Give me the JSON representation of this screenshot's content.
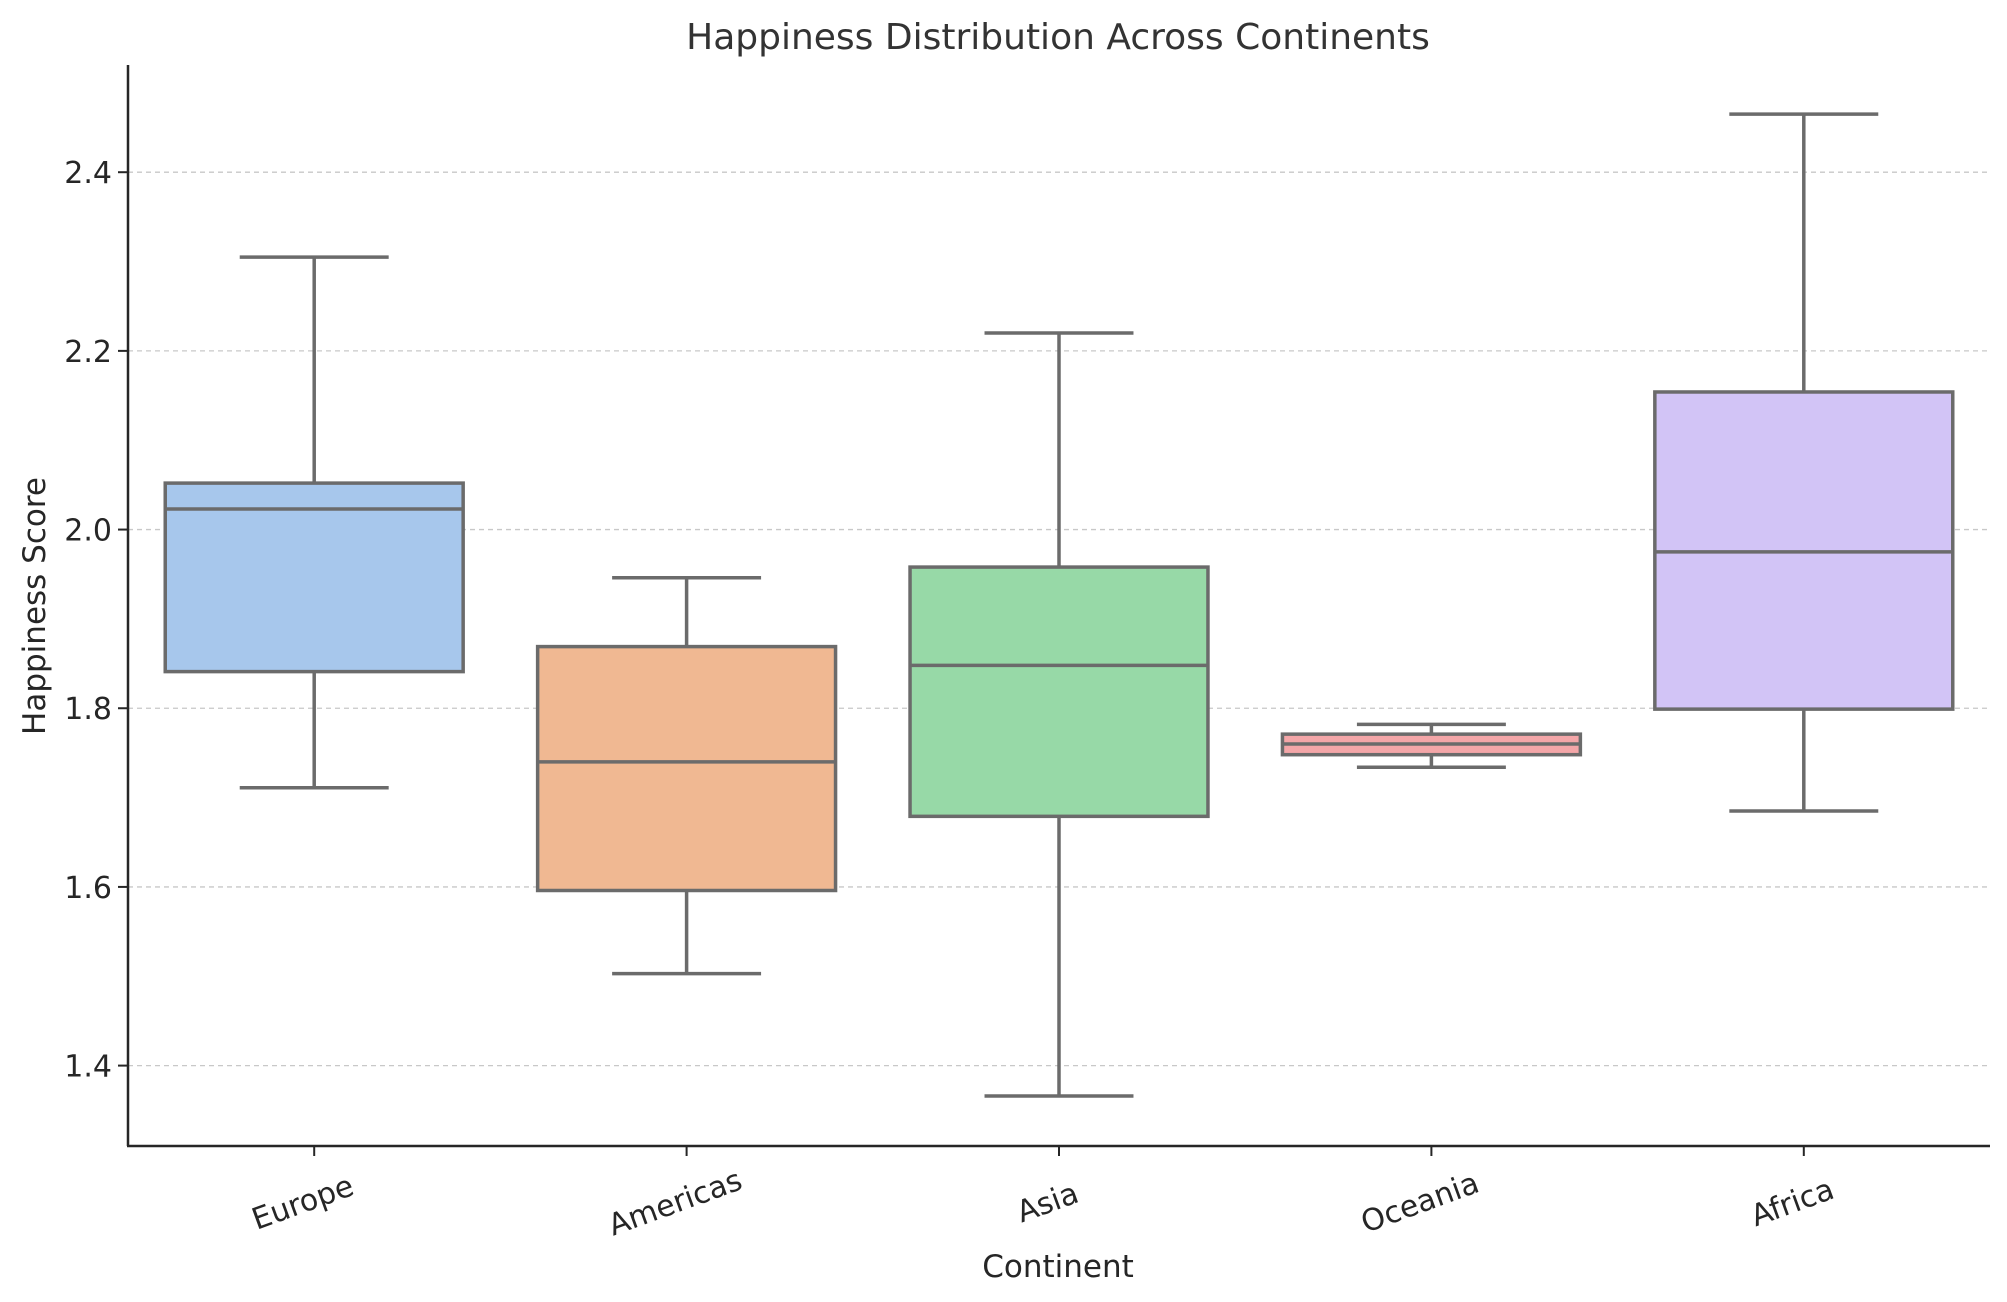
{
  "chart_data": {
    "type": "box",
    "title": "Happiness Distribution Across Continents",
    "xlabel": "Continent",
    "ylabel": "Happiness Score",
    "ylim": [
      1.31,
      2.52
    ],
    "yticks": [
      1.4,
      1.6,
      1.8,
      2.0,
      2.2,
      2.4
    ],
    "ytick_labels": [
      "1.4",
      "1.6",
      "1.8",
      "2.0",
      "2.2",
      "2.4"
    ],
    "grid": "y-dashed",
    "categories": [
      "Europe",
      "Americas",
      "Asia",
      "Oceania",
      "Africa"
    ],
    "boxes": [
      {
        "category": "Europe",
        "whisker_low": 1.711,
        "q1": 1.841,
        "median": 2.023,
        "q3": 2.052,
        "whisker_high": 2.305,
        "color": "#a7c7ec"
      },
      {
        "category": "Americas",
        "whisker_low": 1.503,
        "q1": 1.596,
        "median": 1.74,
        "q3": 1.869,
        "whisker_high": 1.946,
        "color": "#f0b892"
      },
      {
        "category": "Asia",
        "whisker_low": 1.366,
        "q1": 1.679,
        "median": 1.848,
        "q3": 1.958,
        "whisker_high": 2.22,
        "color": "#97d9a7"
      },
      {
        "category": "Oceania",
        "whisker_low": 1.734,
        "q1": 1.748,
        "median": 1.76,
        "q3": 1.771,
        "whisker_high": 1.782,
        "color": "#f4a6a8"
      },
      {
        "category": "Africa",
        "whisker_low": 1.685,
        "q1": 1.799,
        "median": 1.975,
        "q3": 2.154,
        "whisker_high": 2.465,
        "color": "#d2c4f6"
      }
    ],
    "box_edge_color": "#6b6b6b"
  }
}
